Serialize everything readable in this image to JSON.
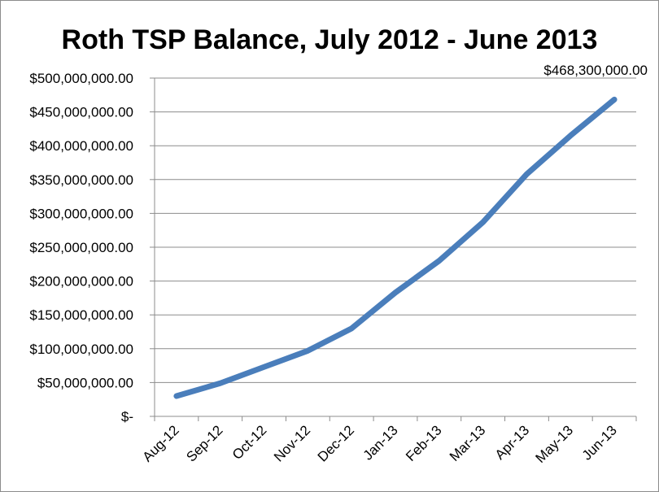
{
  "chart_data": {
    "type": "line",
    "title": "Roth TSP Balance, July 2012 - June 2013",
    "xlabel": "",
    "ylabel": "",
    "categories": [
      "Aug-12",
      "Sep-12",
      "Oct-12",
      "Nov-12",
      "Dec-12",
      "Jan-13",
      "Feb-13",
      "Mar-13",
      "Apr-13",
      "May-13",
      "Jun-13"
    ],
    "series": [
      {
        "values": [
          30000000,
          49000000,
          73000000,
          97000000,
          130000000,
          183000000,
          230000000,
          287000000,
          358000000,
          415000000,
          468300000
        ]
      }
    ],
    "ylim": [
      0,
      500000000
    ],
    "yticks": [
      0,
      50000000,
      100000000,
      150000000,
      200000000,
      250000000,
      300000000,
      350000000,
      400000000,
      450000000,
      500000000
    ],
    "ytick_labels": [
      "$-",
      "$50,000,000.00",
      "$100,000,000.00",
      "$150,000,000.00",
      "$200,000,000.00",
      "$250,000,000.00",
      "$300,000,000.00",
      "$350,000,000.00",
      "$400,000,000.00",
      "$450,000,000.00",
      "$500,000,000.00"
    ],
    "data_label": "$468,300,000.00",
    "grid": true,
    "legend": "none",
    "line_color": "#4a7ebb"
  }
}
